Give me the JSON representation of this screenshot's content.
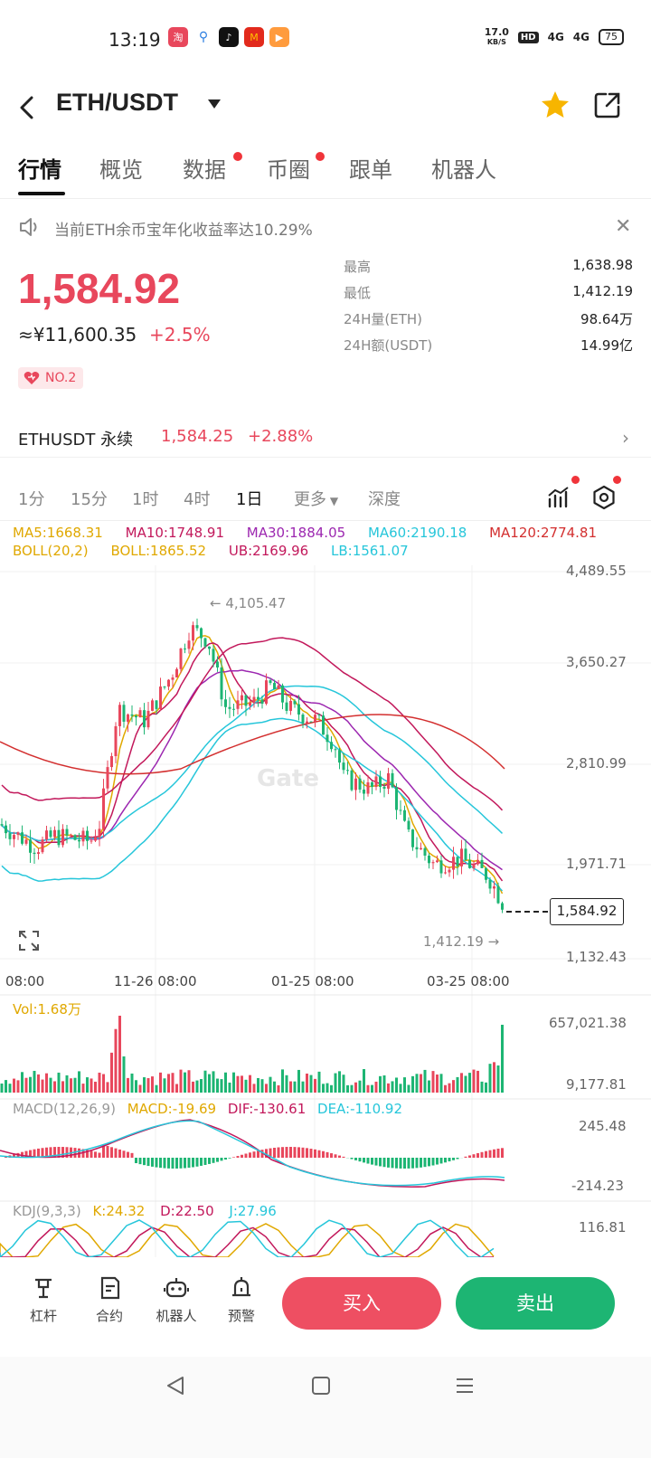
{
  "status": {
    "time": "13:19",
    "net_speed_top": "17.0",
    "net_speed_unit": "KB/S",
    "hd": "HD",
    "sig1": "4G",
    "sig2": "4G",
    "battery": "75"
  },
  "header": {
    "pair": "ETH/USDT"
  },
  "tabs": [
    {
      "label": "行情"
    },
    {
      "label": "概览"
    },
    {
      "label": "数据"
    },
    {
      "label": "币圈"
    },
    {
      "label": "跟单"
    },
    {
      "label": "机器人"
    }
  ],
  "notice": {
    "text": "当前ETH余币宝年化收益率达10.29%"
  },
  "price": {
    "last": "1,584.92",
    "cny": "≈¥11,600.35",
    "change": "+2.5%",
    "rank": "NO.2"
  },
  "stats": [
    {
      "label": "最高",
      "value": "1,638.98"
    },
    {
      "label": "最低",
      "value": "1,412.19"
    },
    {
      "label": "24H量(ETH)",
      "value": "98.64万"
    },
    {
      "label": "24H额(USDT)",
      "value": "14.99亿"
    }
  ],
  "perp": {
    "name": "ETHUSDT 永续",
    "price": "1,584.25",
    "change": "+2.88%"
  },
  "timeframes": [
    "1分",
    "15分",
    "1时",
    "4时",
    "1日",
    "更多",
    "深度"
  ],
  "indicators": {
    "ma5": "MA5:1668.31",
    "ma10": "MA10:1748.91",
    "ma30": "MA30:1884.05",
    "ma60": "MA60:2190.18",
    "ma120": "MA120:2774.81",
    "boll": "BOLL(20,2)",
    "boll_mid": "BOLL:1865.52",
    "ub": "UB:2169.96",
    "lb": "LB:1561.07",
    "vol": "Vol:1.68万",
    "macd_title": "MACD(12,26,9)",
    "macd": "MACD:-19.69",
    "dif": "DIF:-130.61",
    "dea": "DEA:-110.92",
    "kdj_title": "KDJ(9,3,3)",
    "k": "K:24.32",
    "d": "D:22.50",
    "j": "J:27.96"
  },
  "price_axis": [
    "4,489.55",
    "3,650.27",
    "2,810.99",
    "1,971.71",
    "1,132.43"
  ],
  "date_axis": [
    "08:00",
    "11-26 08:00",
    "01-25 08:00",
    "03-25 08:00"
  ],
  "vol_axis": [
    "657,021.38",
    "9,177.81"
  ],
  "macd_axis": [
    "245.48",
    "-214.23"
  ],
  "kdj_axis": [
    "116.81"
  ],
  "chart_marks": {
    "high": "← 4,105.47",
    "low": "1,412.19 →",
    "current": "1,584.92",
    "watermark": "Gate"
  },
  "chart_data": {
    "type": "candlestick",
    "title": "",
    "ylim": [
      1132.43,
      4489.55
    ],
    "x": [
      "08:00",
      "11-26 08:00",
      "01-25 08:00",
      "03-25 08:00"
    ],
    "series": [
      {
        "name": "MA5",
        "value": 1668.31
      },
      {
        "name": "MA10",
        "value": 1748.91
      },
      {
        "name": "MA30",
        "value": 1884.05
      },
      {
        "name": "MA60",
        "value": 2190.18
      },
      {
        "name": "MA120",
        "value": 2774.81
      }
    ],
    "high": 4105.47,
    "low": 1412.19,
    "last": 1584.92
  },
  "bottom": {
    "leverage": "杠杆",
    "contract": "合约",
    "robot": "机器人",
    "alert": "预警",
    "buy": "买入",
    "sell": "卖出"
  },
  "colors": {
    "up": "#e8475c",
    "down": "#1db573",
    "ma5": "#e0a800",
    "ma10": "#c2185b",
    "ma30": "#9c27b0",
    "ma60": "#26c6da",
    "ma120": "#d32f2f"
  }
}
